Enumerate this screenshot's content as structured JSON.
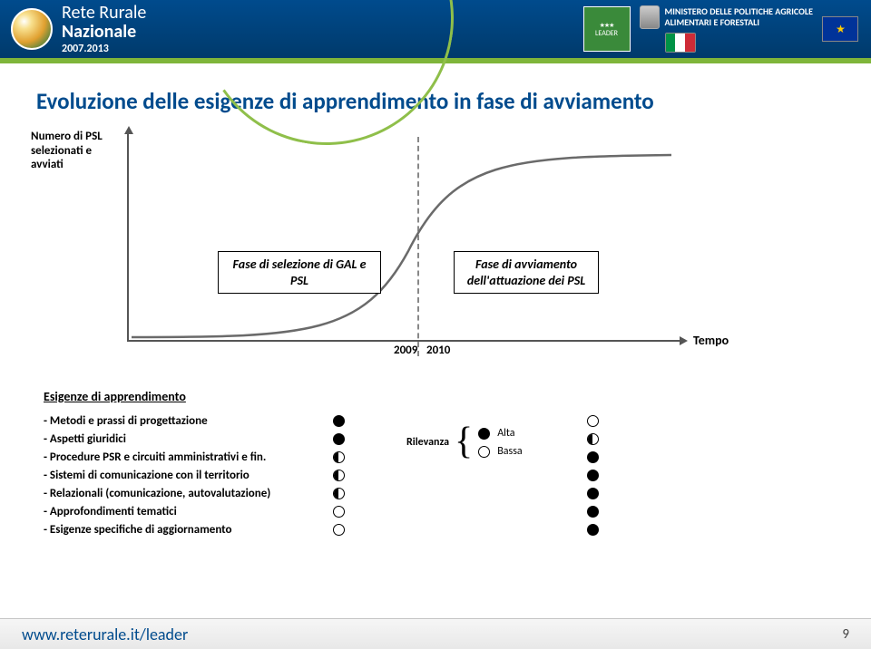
{
  "header": {
    "brand_line1": "Rete Rurale",
    "brand_line2": "Nazionale",
    "brand_years": "2007.2013",
    "leader_label": "LEADER",
    "ministry_line1": "MINISTERO DELLE POLITICHE AGRICOLE",
    "ministry_line2": "ALIMENTARI E FORESTALI"
  },
  "title": "Evoluzione delle esigenze di apprendimento in fase di avviamento",
  "chart": {
    "y_label": "Numero di PSL selezionati e avviati",
    "phase_left": "Fase di selezione di GAL e PSL",
    "phase_right": "Fase di avviamento dell'attuazione dei PSL",
    "tick_a": "2009",
    "tick_b": "2010",
    "x_label": "Tempo",
    "curve_color": "#6a6a6a",
    "dashed_color": "#888888"
  },
  "list": {
    "title": "Esigenze di apprendimento",
    "legend_label": "Rilevanza",
    "legend_high": "Alta",
    "legend_low": "Bassa",
    "rows": [
      {
        "label": "- Metodi e prassi di progettazione",
        "left": "full",
        "right": "empty"
      },
      {
        "label": "- Aspetti giuridici",
        "left": "full",
        "right": "half"
      },
      {
        "label": "- Procedure PSR e circuiti amministrativi e fin.",
        "left": "half",
        "right": "full"
      },
      {
        "label": "- Sistemi di comunicazione con il territorio",
        "left": "half",
        "right": "full"
      },
      {
        "label": "- Relazionali (comunicazione, autovalutazione)",
        "left": "half",
        "right": "full"
      },
      {
        "label": "- Approfondimenti tematici",
        "left": "empty",
        "right": "full"
      },
      {
        "label": "- Esigenze specifiche di aggiornamento",
        "left": "empty",
        "right": "full"
      }
    ]
  },
  "footer": {
    "link": "www.reterurale.it/leader",
    "page": "9"
  },
  "colors": {
    "title": "#004b8d",
    "header_bg": "#003a6b",
    "green": "#7fb53a",
    "it_green": "#009246",
    "it_white": "#ffffff",
    "it_red": "#ce2b37"
  }
}
